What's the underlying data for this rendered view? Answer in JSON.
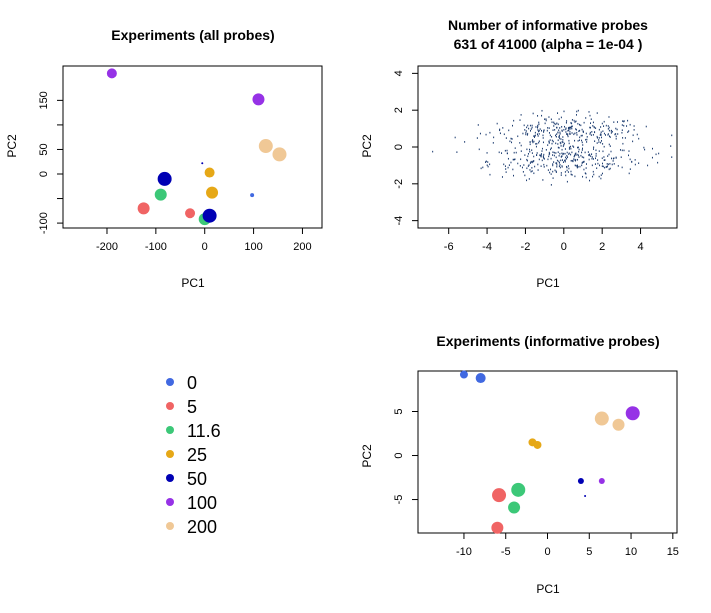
{
  "chart_data": [
    {
      "type": "scatter",
      "title": "Experiments (all probes)",
      "xlabel": "PC1",
      "ylabel": "PC2",
      "xlim": [
        -290,
        240
      ],
      "ylim": [
        -110,
        220
      ],
      "xticks": [
        -200,
        -100,
        0,
        100,
        200
      ],
      "yticks": [
        -100,
        -50,
        0,
        50,
        100,
        150
      ],
      "ytick_labels": [
        "-100",
        "",
        "0",
        "50",
        "",
        "150"
      ],
      "grid": false,
      "points": [
        {
          "x": -190,
          "y": 205,
          "group": "100",
          "size": 5
        },
        {
          "x": 110,
          "y": 152,
          "group": "100",
          "size": 6
        },
        {
          "x": 125,
          "y": 57,
          "group": "200",
          "size": 7
        },
        {
          "x": 153,
          "y": 40,
          "group": "200",
          "size": 7
        },
        {
          "x": -5,
          "y": 22,
          "group": "50",
          "size": 1
        },
        {
          "x": 10,
          "y": 3,
          "group": "25",
          "size": 5
        },
        {
          "x": -82,
          "y": -10,
          "group": "50",
          "size": 7
        },
        {
          "x": 15,
          "y": -38,
          "group": "25",
          "size": 6
        },
        {
          "x": -90,
          "y": -42,
          "group": "11.6",
          "size": 6
        },
        {
          "x": 97,
          "y": -43,
          "group": "0",
          "size": 2
        },
        {
          "x": -125,
          "y": -70,
          "group": "5",
          "size": 6
        },
        {
          "x": -30,
          "y": -80,
          "group": "5",
          "size": 5
        },
        {
          "x": 0,
          "y": -92,
          "group": "11.6",
          "size": 6
        },
        {
          "x": 10,
          "y": -85,
          "group": "50",
          "size": 7
        }
      ]
    },
    {
      "type": "scatter",
      "title": "Number of informative probes",
      "subtitle": "631 of 41000 (alpha = 1e-04 )",
      "xlabel": "PC1",
      "ylabel": "PC2",
      "xlim": [
        -7.6,
        5.9
      ],
      "ylim": [
        -4.4,
        4.4
      ],
      "xticks": [
        -6,
        -4,
        -2,
        0,
        2,
        4
      ],
      "yticks": [
        -4,
        -2,
        0,
        2,
        4
      ],
      "grid": false,
      "point_count": 631,
      "point_color": "#1a3a6e",
      "cluster_centers_y": [
        0.85,
        -0.75
      ],
      "x_range_of_points": [
        -7.3,
        5.6
      ]
    },
    {
      "type": "scatter",
      "title": "Experiments (informative probes)",
      "xlabel": "PC1",
      "ylabel": "PC2",
      "xlim": [
        -15.5,
        15.5
      ],
      "ylim": [
        -8.8,
        9.6
      ],
      "xticks": [
        -10,
        -5,
        0,
        5,
        10,
        15
      ],
      "yticks": [
        -5,
        0,
        5
      ],
      "grid": false,
      "points": [
        {
          "x": -10,
          "y": 9.2,
          "group": "0",
          "size": 4
        },
        {
          "x": -8,
          "y": 8.8,
          "group": "0",
          "size": 5
        },
        {
          "x": 6.5,
          "y": 4.2,
          "group": "200",
          "size": 7
        },
        {
          "x": 10.2,
          "y": 4.8,
          "group": "100",
          "size": 7
        },
        {
          "x": 8.5,
          "y": 3.5,
          "group": "200",
          "size": 6
        },
        {
          "x": -1.8,
          "y": 1.5,
          "group": "25",
          "size": 4
        },
        {
          "x": -1.2,
          "y": 1.2,
          "group": "25",
          "size": 4
        },
        {
          "x": 4,
          "y": -2.9,
          "group": "50",
          "size": 3
        },
        {
          "x": 6.5,
          "y": -2.9,
          "group": "100",
          "size": 3
        },
        {
          "x": 4.5,
          "y": -4.6,
          "group": "50",
          "size": 1
        },
        {
          "x": -5.8,
          "y": -4.5,
          "group": "5",
          "size": 7
        },
        {
          "x": -3.5,
          "y": -3.9,
          "group": "11.6",
          "size": 7
        },
        {
          "x": -4,
          "y": -5.9,
          "group": "11.6",
          "size": 6
        },
        {
          "x": -6,
          "y": -8.2,
          "group": "5",
          "size": 6
        }
      ]
    }
  ],
  "legend": [
    {
      "label": "0",
      "color": "#4169e1"
    },
    {
      "label": "5",
      "color": "#f06464"
    },
    {
      "label": "11.6",
      "color": "#3cc878"
    },
    {
      "label": "25",
      "color": "#e6a817"
    },
    {
      "label": "50",
      "color": "#0000b4"
    },
    {
      "label": "100",
      "color": "#9632e6"
    },
    {
      "label": "200",
      "color": "#f0c896"
    }
  ]
}
